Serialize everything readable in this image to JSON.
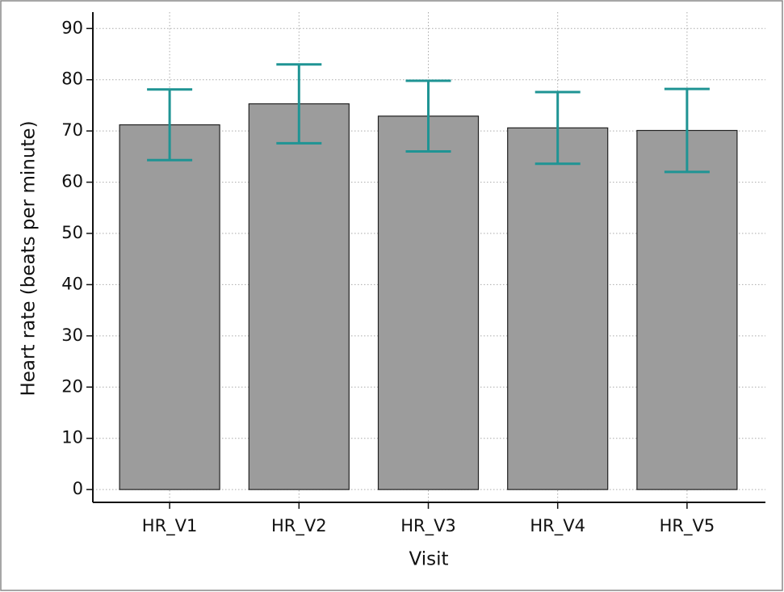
{
  "chart_data": {
    "type": "bar",
    "x_label": "Visit",
    "y_label": "Heart rate (beats per minute)",
    "categories": [
      "HR_V1",
      "HR_V2",
      "HR_V3",
      "HR_V4",
      "HR_V5"
    ],
    "values": [
      71.2,
      75.3,
      72.9,
      70.6,
      70.1
    ],
    "errors": [
      6.9,
      7.7,
      6.9,
      7.0,
      8.1
    ],
    "color": "#9c9c9c",
    "error_color": "#1f9494",
    "ylim": [
      -2.5,
      93.2
    ],
    "yticks": [
      0,
      10,
      20,
      30,
      40,
      50,
      60,
      70,
      80,
      90
    ],
    "grid": true
  }
}
